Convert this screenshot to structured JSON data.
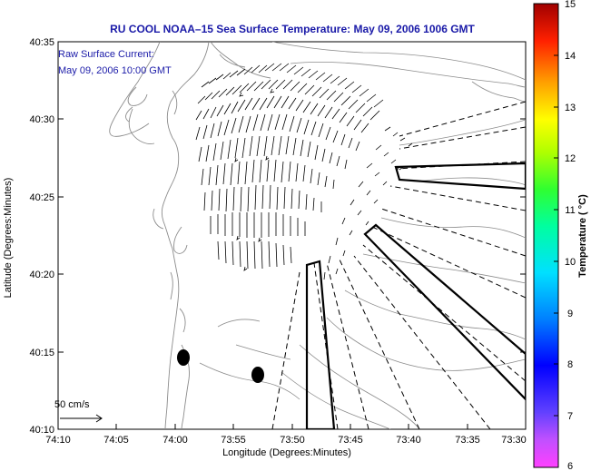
{
  "title": "RU COOL  NOAA–15  Sea Surface Temperature:  May 09, 2006 1006 GMT",
  "legend": {
    "line1": "Raw Surface Current:",
    "line2": "May 09, 2006 10:00 GMT"
  },
  "scale": {
    "label": "50 cm/s"
  },
  "axes": {
    "xlabel": "Longitude (Degrees:Minutes)",
    "ylabel": "Latitude (Degrees:Minutes)",
    "xticks": [
      "74:10",
      "74:05",
      "74:00",
      "73:55",
      "73:50",
      "73:45",
      "73:40",
      "73:35",
      "73:30"
    ],
    "yticks": [
      "40:35",
      "40:30",
      "40:25",
      "40:20",
      "40:15",
      "40:10"
    ],
    "xlim_deg": [
      -74.1667,
      -73.5
    ],
    "ylim_deg": [
      40.1667,
      40.5833
    ]
  },
  "colorbar": {
    "label": "Temperature ( °C)",
    "ticks": [
      "15",
      "14",
      "13",
      "12",
      "11",
      "10",
      "9",
      "8",
      "7",
      "6"
    ],
    "range": [
      6,
      15
    ]
  },
  "colors": {
    "title": "#1a1aa8",
    "contour": "#8c8c8c",
    "vector": "#000000"
  }
}
